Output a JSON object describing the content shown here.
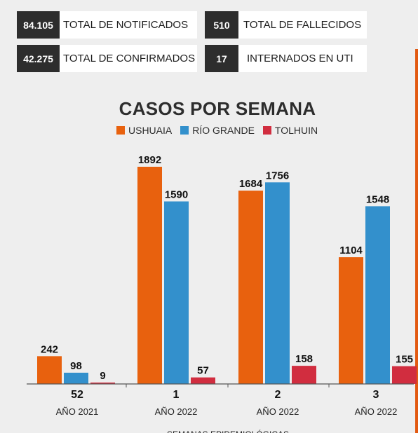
{
  "stats": {
    "notificados": {
      "value": "84.105",
      "label": "TOTAL DE NOTIFICADOS"
    },
    "fallecidos": {
      "value": "510",
      "label": "TOTAL DE FALLECIDOS"
    },
    "confirmados": {
      "value": "42.275",
      "label": "TOTAL DE CONFIRMADOS"
    },
    "uti": {
      "value": "17",
      "label": "INTERNADOS EN UTI"
    }
  },
  "chart_data": {
    "type": "bar",
    "title": "CASOS POR SEMANA",
    "xlabel": "SEMANAS EPIDEMIOLÓGICAS",
    "categories": [
      "52",
      "1",
      "2",
      "3"
    ],
    "category_sublabels": [
      "AÑO 2021",
      "AÑO 2022",
      "AÑO 2022",
      "AÑO 2022"
    ],
    "series": [
      {
        "name": "USHUAIA",
        "color": "#e8610e",
        "values": [
          242,
          1892,
          1684,
          1104
        ]
      },
      {
        "name": "RÍO GRANDE",
        "color": "#3390cc",
        "values": [
          98,
          1590,
          1756,
          1548
        ]
      },
      {
        "name": "TOLHUIN",
        "color": "#d12d3f",
        "values": [
          9,
          57,
          158,
          155
        ]
      }
    ],
    "legend_position": "top-center",
    "grid": false
  }
}
